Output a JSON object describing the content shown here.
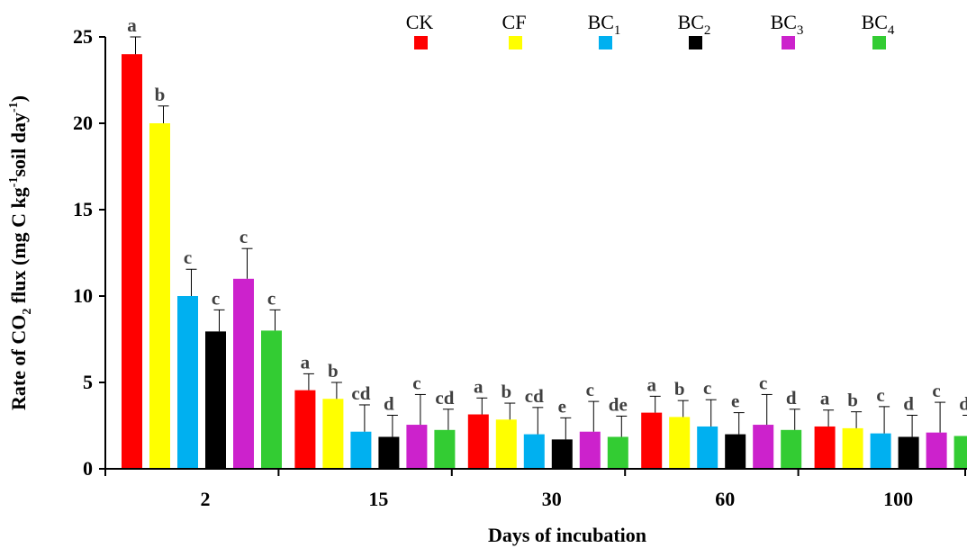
{
  "chart_data": {
    "type": "bar",
    "xlabel": "Days of incubation",
    "ylabel_parts": [
      "Rate of CO",
      "2",
      " flux  (mg C kg",
      "-1",
      "soil day",
      "-1",
      ")"
    ],
    "ylim": [
      0,
      25
    ],
    "yticks": [
      0,
      5,
      10,
      15,
      20,
      25
    ],
    "categories": [
      "2",
      "15",
      "30",
      "60",
      "100"
    ],
    "legend_position": "top-right",
    "series": [
      {
        "name": "CK",
        "name_base": "CK",
        "name_sub": "",
        "color": "#ff0000",
        "values": [
          24.0,
          4.55,
          3.15,
          3.25,
          2.45
        ],
        "errors": [
          1.0,
          0.95,
          0.95,
          0.95,
          0.95
        ],
        "letters": [
          "a",
          "a",
          "a",
          "a",
          "a"
        ]
      },
      {
        "name": "CF",
        "name_base": "CF",
        "name_sub": "",
        "color": "#ffff00",
        "values": [
          20.0,
          4.05,
          2.85,
          3.0,
          2.35
        ],
        "errors": [
          1.0,
          0.95,
          0.95,
          0.95,
          0.95
        ],
        "letters": [
          "b",
          "b",
          "b",
          "b",
          "b"
        ]
      },
      {
        "name": "BC1",
        "name_base": "BC",
        "name_sub": "1",
        "color": "#00b0f0",
        "values": [
          10.0,
          2.15,
          2.0,
          2.45,
          2.05
        ],
        "errors": [
          1.55,
          1.55,
          1.55,
          1.55,
          1.55
        ],
        "letters": [
          "c",
          "cd",
          "cd",
          "c",
          "c"
        ]
      },
      {
        "name": "BC2",
        "name_base": "BC",
        "name_sub": "2",
        "color": "#000000",
        "values": [
          7.95,
          1.85,
          1.7,
          2.0,
          1.85
        ],
        "errors": [
          1.25,
          1.25,
          1.25,
          1.25,
          1.25
        ],
        "letters": [
          "c",
          "d",
          "e",
          "e",
          "d"
        ]
      },
      {
        "name": "BC3",
        "name_base": "BC",
        "name_sub": "3",
        "color": "#cc22cc",
        "values": [
          11.0,
          2.55,
          2.15,
          2.55,
          2.1
        ],
        "errors": [
          1.75,
          1.75,
          1.75,
          1.75,
          1.75
        ],
        "letters": [
          "c",
          "c",
          "c",
          "c",
          "c"
        ]
      },
      {
        "name": "BC4",
        "name_base": "BC",
        "name_sub": "4",
        "color": "#33cc33",
        "values": [
          8.0,
          2.25,
          1.85,
          2.25,
          1.9
        ],
        "errors": [
          1.2,
          1.2,
          1.2,
          1.2,
          1.2
        ],
        "letters": [
          "c",
          "cd",
          "de",
          "d",
          "d"
        ]
      }
    ]
  }
}
